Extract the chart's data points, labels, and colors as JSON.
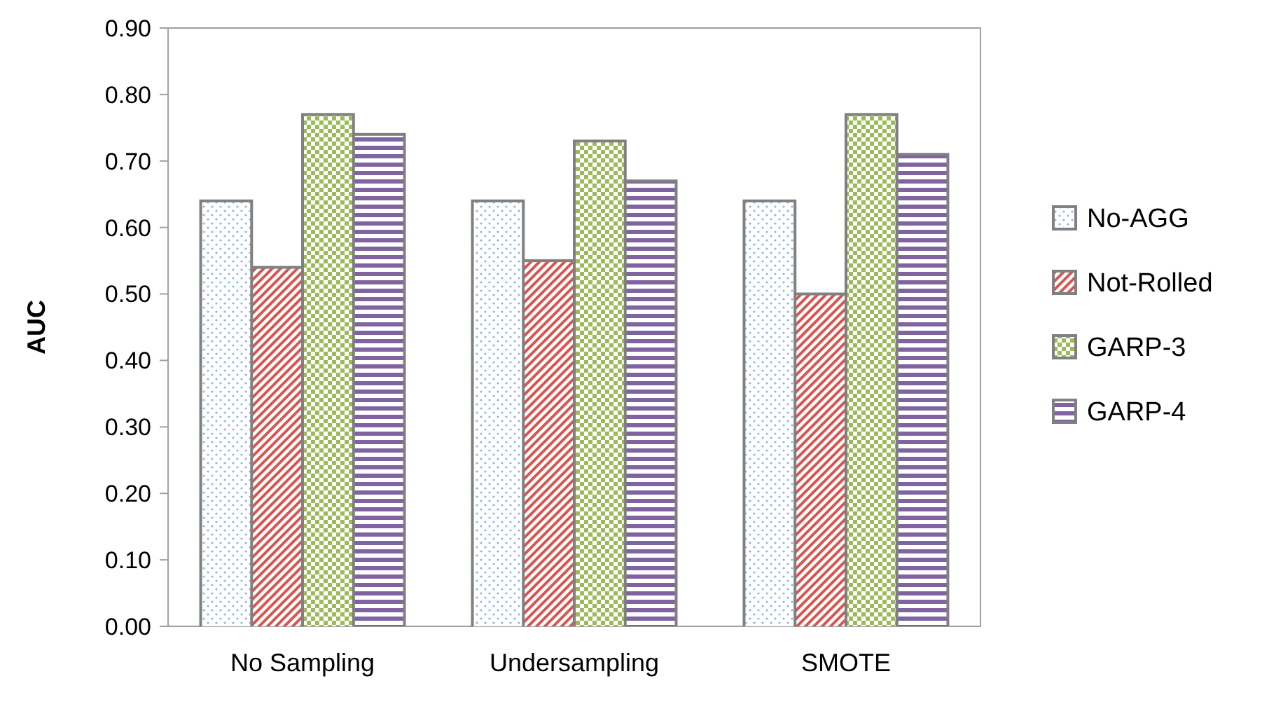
{
  "chart_data": {
    "type": "bar",
    "ylabel": "AUC",
    "categories": [
      "No Sampling",
      "Undersampling",
      "SMOTE"
    ],
    "series": [
      {
        "name": "No-AGG",
        "color": "#8db3e2",
        "values": [
          0.64,
          0.64,
          0.64
        ]
      },
      {
        "name": "Not-Rolled",
        "color": "#d9534f",
        "values": [
          0.54,
          0.55,
          0.5
        ]
      },
      {
        "name": "GARP-3",
        "color": "#9bbb59",
        "values": [
          0.77,
          0.73,
          0.77
        ]
      },
      {
        "name": "GARP-4",
        "color": "#8064a2",
        "values": [
          0.74,
          0.67,
          0.71
        ]
      }
    ],
    "ylim": [
      0,
      0.9
    ],
    "yticks": [
      {
        "value": 0,
        "label": "0.00"
      },
      {
        "value": 0.1,
        "label": "0.10"
      },
      {
        "value": 0.2,
        "label": "0.20"
      },
      {
        "value": 0.3,
        "label": "0.30"
      },
      {
        "value": 0.4,
        "label": "0.40"
      },
      {
        "value": 0.5,
        "label": "0.50"
      },
      {
        "value": 0.6,
        "label": "0.60"
      },
      {
        "value": 0.7,
        "label": "0.70"
      },
      {
        "value": 0.8,
        "label": "0.80"
      },
      {
        "value": 0.9,
        "label": "0.90"
      }
    ],
    "grid": false,
    "legend": "right"
  }
}
